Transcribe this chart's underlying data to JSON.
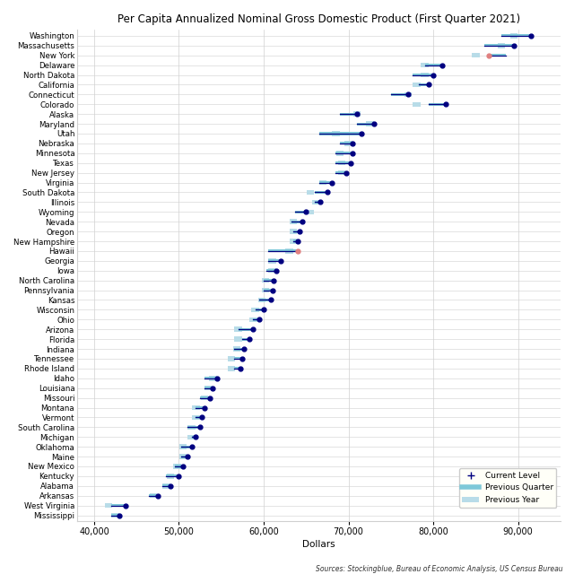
{
  "title": "Per Capita Annualized Nominal Gross Domestic Product (First Quarter 2021)",
  "xlabel": "Dollars",
  "source": "Sources: Stockingblue, Bureau of Economic Analysis, US Census Bureau",
  "states": [
    "Washington",
    "Massachusetts",
    "New York",
    "Delaware",
    "North Dakota",
    "California",
    "Connecticut",
    "Colorado",
    "Alaska",
    "Maryland",
    "Utah",
    "Nebraska",
    "Minnesota",
    "Texas",
    "New Jersey",
    "Virginia",
    "South Dakota",
    "Illinois",
    "Wyoming",
    "Nevada",
    "Oregon",
    "New Hampshire",
    "Hawaii",
    "Georgia",
    "Iowa",
    "North Carolina",
    "Pennsylvania",
    "Kansas",
    "Wisconsin",
    "Ohio",
    "Arizona",
    "Florida",
    "Indiana",
    "Tennessee",
    "Rhode Island",
    "Idaho",
    "Louisiana",
    "Missouri",
    "Montana",
    "Vermont",
    "South Carolina",
    "Michigan",
    "Oklahoma",
    "Maine",
    "New Mexico",
    "Kentucky",
    "Alabama",
    "Arkansas",
    "West Virginia",
    "Mississippi"
  ],
  "current": [
    91500,
    89500,
    86500,
    81000,
    80000,
    79500,
    77000,
    81500,
    71000,
    73000,
    71500,
    70500,
    70500,
    70300,
    69700,
    68000,
    67500,
    66700,
    65000,
    64500,
    64200,
    64000,
    64000,
    62000,
    61500,
    61200,
    61000,
    60800,
    60000,
    59500,
    58700,
    58300,
    57700,
    57500,
    57200,
    54500,
    54000,
    53700,
    53000,
    52700,
    52500,
    52000,
    51500,
    51000,
    50500,
    50000,
    49000,
    47500,
    43700,
    43000
  ],
  "prev_quarter": [
    88000,
    86000,
    88500,
    79000,
    77500,
    78300,
    75000,
    79500,
    69000,
    71000,
    66500,
    69000,
    68500,
    68500,
    68500,
    66500,
    66000,
    66000,
    63700,
    63300,
    63500,
    63500,
    60500,
    60500,
    60300,
    60000,
    60000,
    59500,
    59000,
    58700,
    57000,
    57500,
    56500,
    56500,
    56500,
    53000,
    53000,
    52500,
    52000,
    52000,
    51000,
    51500,
    50300,
    50300,
    49500,
    48500,
    48000,
    46500,
    42000,
    42000
  ],
  "prev_year": [
    89500,
    88000,
    85000,
    79000,
    79000,
    78000,
    77000,
    78000,
    71000,
    72500,
    68500,
    70000,
    69000,
    69200,
    69200,
    67000,
    65500,
    66200,
    65500,
    63500,
    63500,
    63500,
    63000,
    61000,
    61000,
    60200,
    60200,
    59800,
    59000,
    58800,
    57000,
    57000,
    56800,
    56200,
    56200,
    54000,
    53500,
    53000,
    52000,
    52000,
    51500,
    51500,
    50500,
    50500,
    49800,
    49000,
    48500,
    47000,
    41700,
    42500
  ],
  "xlim_left": 38000,
  "xlim_right": 95000,
  "xticks": [
    40000,
    50000,
    60000,
    70000,
    80000,
    90000
  ],
  "xtick_labels": [
    "40,000",
    "50,000",
    "60,000",
    "70,000",
    "80,000",
    "90,000"
  ],
  "color_prev_quarter_bar": "#7ec8d8",
  "color_prev_year_rect": "#b8dce8",
  "color_dot_line": "#000080",
  "color_hawaii_dot": "#e08080",
  "color_newyork_dot": "#e08080",
  "grid_color": "#d0d0d0",
  "bg_color": "#ffffff"
}
